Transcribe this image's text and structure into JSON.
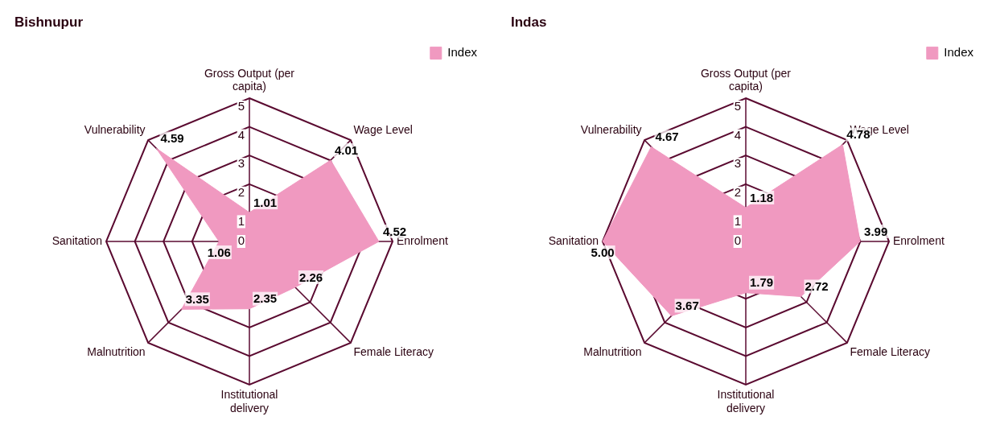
{
  "chart_data": [
    {
      "type": "radar",
      "title": "Bishnupur",
      "categories": [
        "Gross Output (per capita)",
        "Wage Level",
        "Enrolment",
        "Female Literacy",
        "Institutional delivery",
        "Malnutrition",
        "Sanitation",
        "Vulnerability"
      ],
      "series": [
        {
          "name": "Index",
          "color": "#f099c0",
          "values": [
            1.01,
            4.01,
            4.52,
            2.26,
            2.35,
            3.35,
            1.06,
            4.59
          ],
          "value_labels": [
            "1.01",
            "4.01",
            "4.52",
            "2.26",
            "2.35",
            "3.35",
            "1.06",
            "4.59"
          ]
        }
      ],
      "ylim": [
        0,
        5
      ],
      "yticks": [
        0,
        1,
        2,
        3,
        4,
        5
      ],
      "legend": "top right"
    },
    {
      "type": "radar",
      "title": "Indas",
      "categories": [
        "Gross Output (per capita)",
        "Wage Level",
        "Enrolment",
        "Female Literacy",
        "Institutional delivery",
        "Malnutrition",
        "Sanitation",
        "Vulnerability"
      ],
      "series": [
        {
          "name": "Index",
          "color": "#f099c0",
          "values": [
            1.18,
            4.78,
            3.99,
            2.72,
            1.79,
            3.67,
            5.0,
            4.67
          ],
          "value_labels": [
            "1.18",
            "4.78",
            "3.99",
            "2.72",
            "1.79",
            "3.67",
            "5.00",
            "4.67"
          ]
        }
      ],
      "ylim": [
        0,
        5
      ],
      "yticks": [
        0,
        1,
        2,
        3,
        4,
        5
      ],
      "legend": "top right"
    }
  ]
}
